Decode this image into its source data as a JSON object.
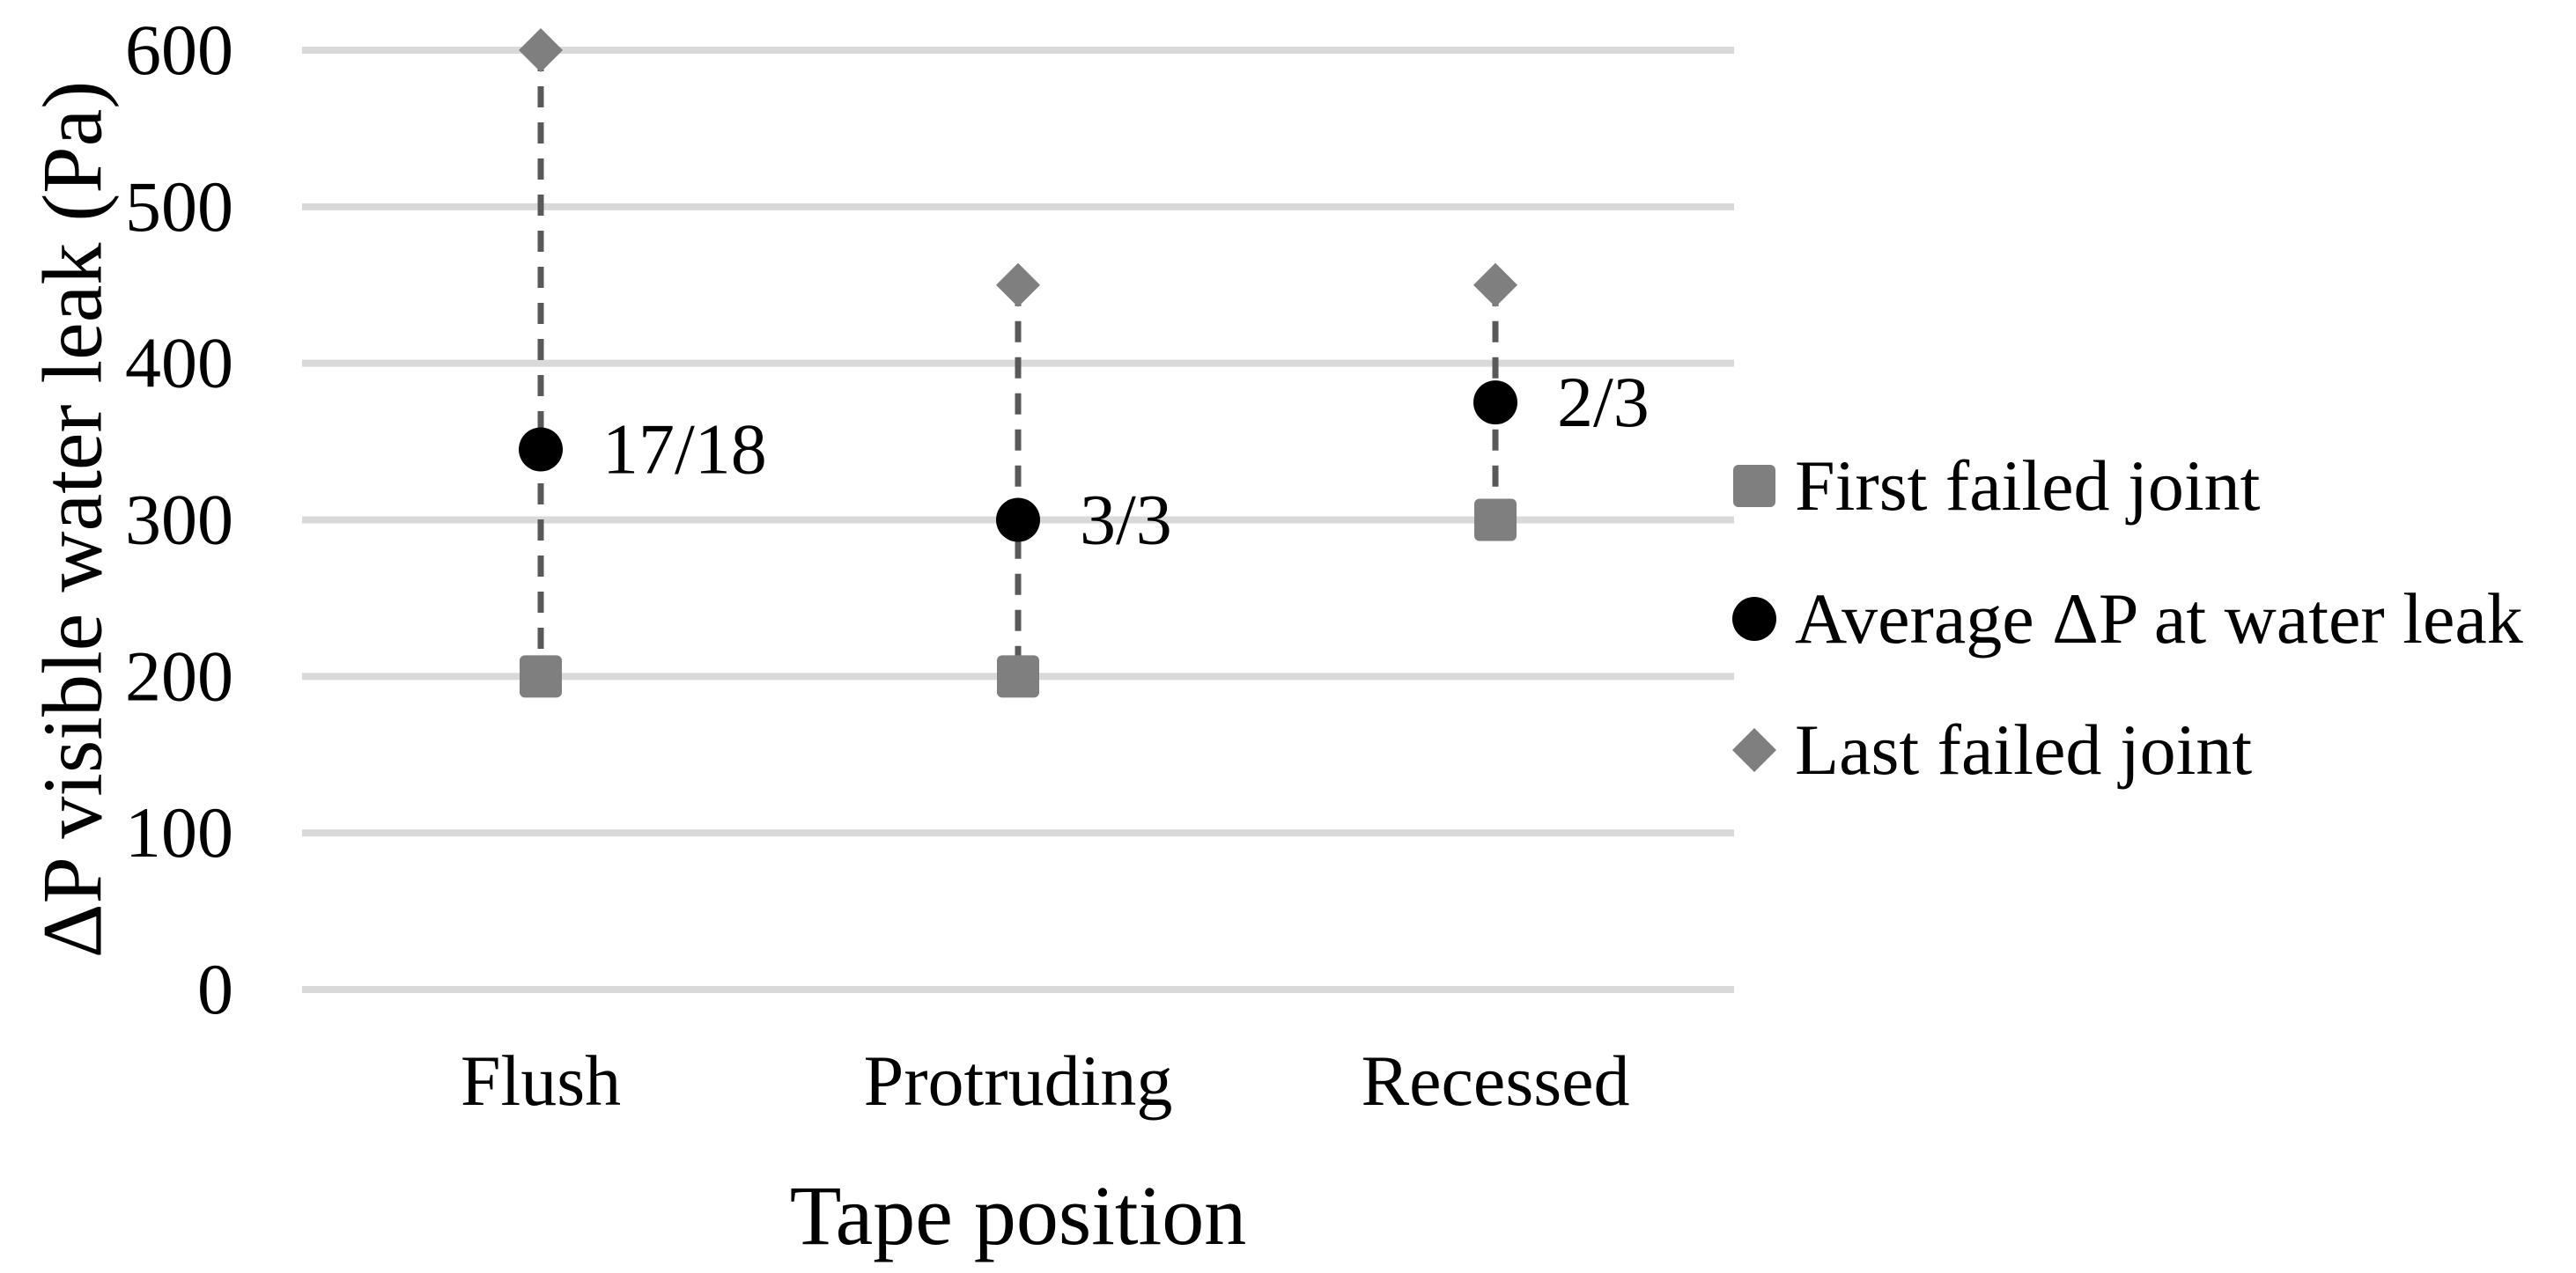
{
  "chart_data": {
    "type": "scatter",
    "title": "",
    "xlabel": "Tape position",
    "ylabel": "ΔP visible water leak (Pa)",
    "categories": [
      "Flush",
      "Protruding",
      "Recessed"
    ],
    "ylim": [
      0,
      600
    ],
    "yticks": [
      0,
      100,
      200,
      300,
      400,
      500,
      600
    ],
    "grid": true,
    "legend_position": "right",
    "series": [
      {
        "name": "First failed joint",
        "marker": "square",
        "color": "#7F7F7F",
        "values": [
          200,
          200,
          300
        ]
      },
      {
        "name": "Average ΔP at water leak",
        "marker": "circle",
        "color": "#000000",
        "values": [
          345,
          300,
          375
        ]
      },
      {
        "name": "Last failed joint",
        "marker": "diamond",
        "color": "#7F7F7F",
        "values": [
          600,
          450,
          450
        ]
      }
    ],
    "point_labels": {
      "series_index": 1,
      "labels": [
        "17/18",
        "3/3",
        "2/3"
      ]
    },
    "connectors": {
      "style": "dashed",
      "color": "#595959"
    },
    "colors": {
      "gridline": "#D9D9D9",
      "text": "#000000",
      "background": "#FFFFFF"
    }
  }
}
